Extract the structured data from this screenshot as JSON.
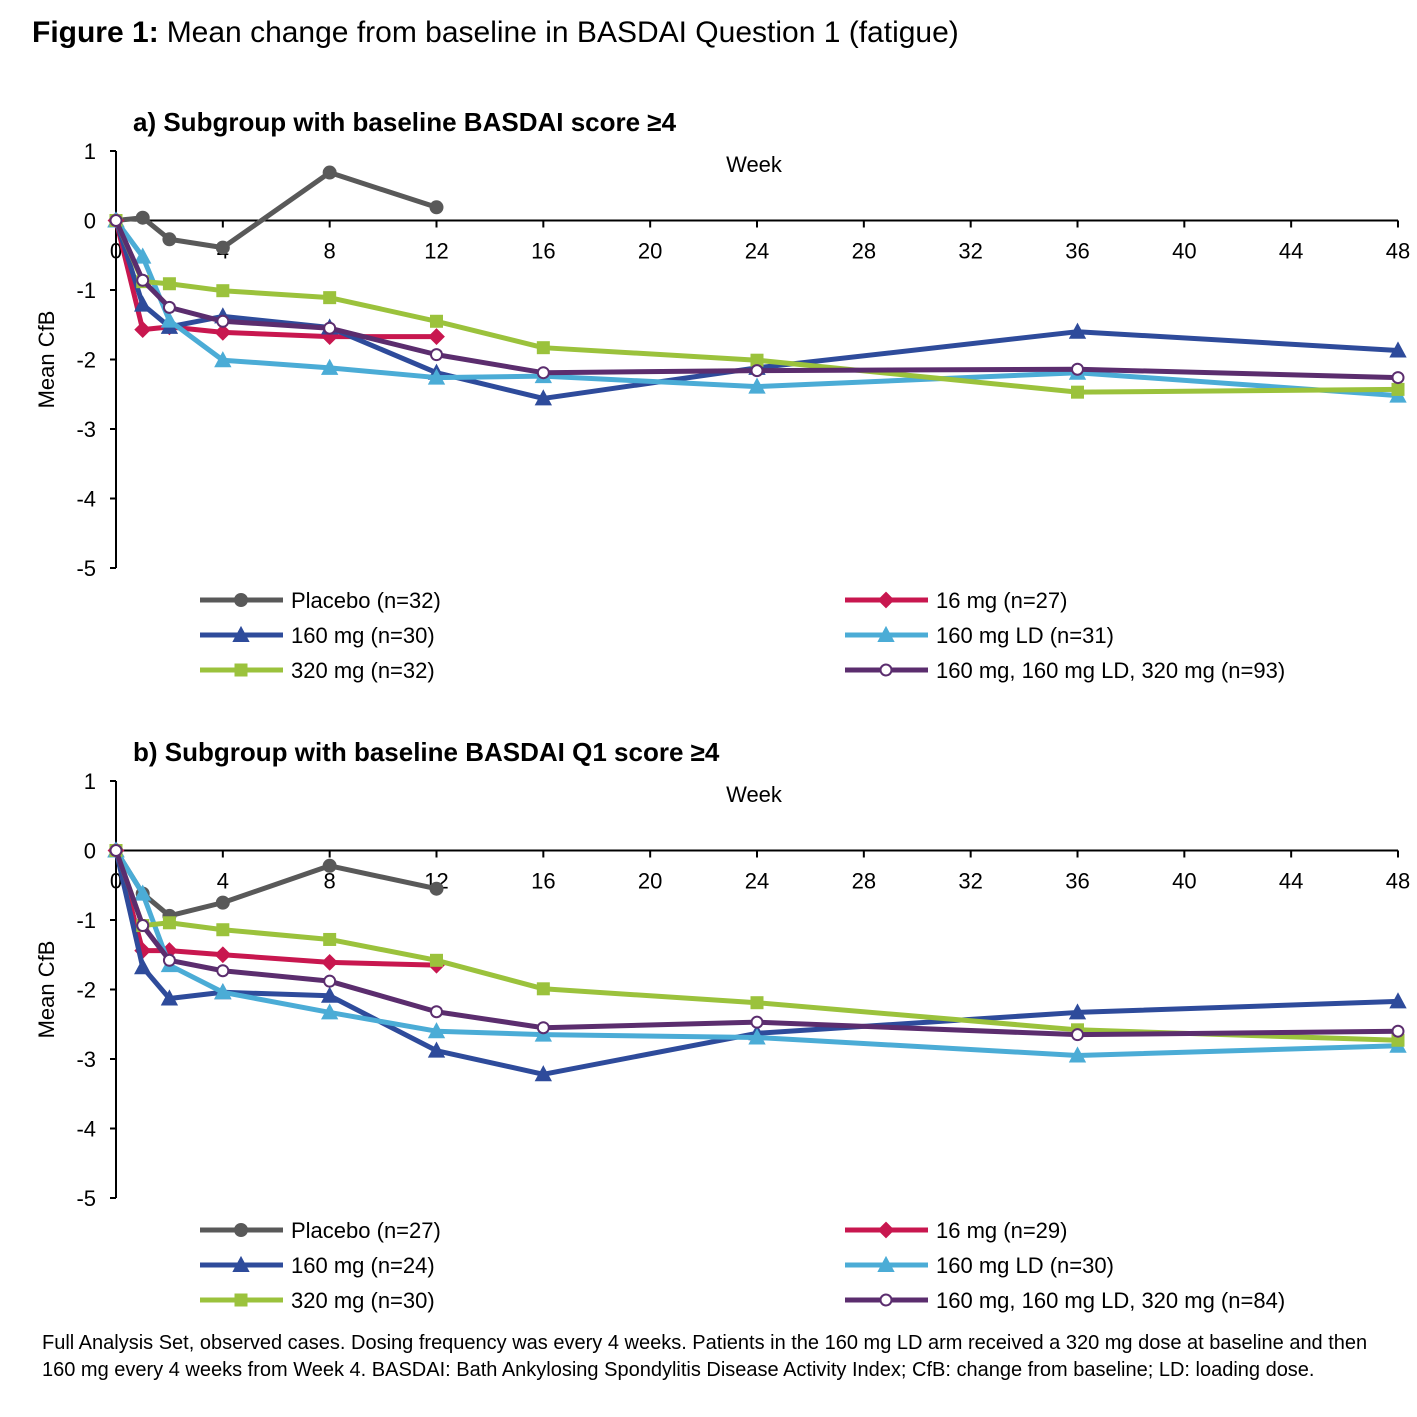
{
  "figure": {
    "label": "Figure 1:",
    "title": "Mean change from baseline in BASDAI Question 1 (fatigue)"
  },
  "footnote": "Full Analysis Set, observed cases. Dosing frequency was every 4 weeks. Patients in the 160 mg LD arm received a 320 mg dose at baseline and then 160 mg every 4 weeks from Week 4. BASDAI: Bath Ankylosing Spondylitis Disease Activity Index; CfB: change from baseline; LD: loading dose.",
  "chart_data": [
    {
      "type": "line",
      "title": "a) Subgroup with baseline BASDAI score ≥4",
      "xlabel": "Week",
      "ylabel": "Mean CfB",
      "x": [
        0,
        1,
        2,
        4,
        8,
        12,
        16,
        24,
        36,
        48
      ],
      "xlim": [
        0,
        48
      ],
      "xticks": [
        0,
        4,
        8,
        12,
        16,
        20,
        24,
        28,
        32,
        36,
        40,
        44,
        48
      ],
      "ylim": [
        -5,
        1
      ],
      "yticks": [
        -5,
        -4,
        -3,
        -2,
        -1,
        0,
        1
      ],
      "grid": false,
      "legend": "bottom",
      "series": [
        {
          "name": "Placebo (n=32)",
          "color": "#595959",
          "marker": "circle",
          "values": [
            0,
            0.04,
            -0.27,
            -0.39,
            0.69,
            0.19,
            null,
            null,
            null,
            null
          ]
        },
        {
          "name": "16 mg (n=27)",
          "color": "#c8174f",
          "marker": "diamond",
          "values": [
            0,
            -1.57,
            -1.53,
            -1.61,
            -1.67,
            -1.67,
            null,
            null,
            null,
            null
          ]
        },
        {
          "name": "160 mg (n=30)",
          "color": "#2e4b9b",
          "marker": "triangle",
          "values": [
            0,
            -1.21,
            -1.53,
            -1.38,
            -1.54,
            -2.19,
            -2.56,
            -2.12,
            -1.6,
            -1.87
          ]
        },
        {
          "name": "160 mg LD (n=31)",
          "color": "#4bacd6",
          "marker": "triangle",
          "values": [
            0,
            -0.52,
            -1.44,
            -2.01,
            -2.12,
            -2.26,
            -2.24,
            -2.39,
            -2.19,
            -2.52
          ]
        },
        {
          "name": "320 mg (n=32)",
          "color": "#9bc23c",
          "marker": "square",
          "values": [
            0,
            -0.88,
            -0.91,
            -1.01,
            -1.11,
            -1.45,
            -1.83,
            -2.01,
            -2.47,
            -2.43
          ]
        },
        {
          "name": "160 mg, 160 mg LD, 320 mg (n=93)",
          "color": "#5b2d6e",
          "marker": "open-circle",
          "values": [
            0,
            -0.86,
            -1.25,
            -1.45,
            -1.55,
            -1.93,
            -2.19,
            -2.16,
            -2.14,
            -2.26
          ]
        }
      ]
    },
    {
      "type": "line",
      "title": "b) Subgroup with baseline BASDAI Q1 score ≥4",
      "xlabel": "Week",
      "ylabel": "Mean CfB",
      "x": [
        0,
        1,
        2,
        4,
        8,
        12,
        16,
        24,
        36,
        48
      ],
      "xlim": [
        0,
        48
      ],
      "xticks": [
        0,
        4,
        8,
        12,
        16,
        20,
        24,
        28,
        32,
        36,
        40,
        44,
        48
      ],
      "ylim": [
        -5,
        1
      ],
      "yticks": [
        -5,
        -4,
        -3,
        -2,
        -1,
        0,
        1
      ],
      "grid": false,
      "legend": "bottom",
      "series": [
        {
          "name": "Placebo (n=27)",
          "color": "#595959",
          "marker": "circle",
          "values": [
            0,
            -0.62,
            -0.94,
            -0.75,
            -0.22,
            -0.55,
            null,
            null,
            null,
            null
          ]
        },
        {
          "name": "16 mg (n=29)",
          "color": "#c8174f",
          "marker": "diamond",
          "values": [
            0,
            -1.44,
            -1.44,
            -1.5,
            -1.61,
            -1.65,
            null,
            null,
            null,
            null
          ]
        },
        {
          "name": "160 mg (n=24)",
          "color": "#2e4b9b",
          "marker": "triangle",
          "values": [
            0,
            -1.68,
            -2.13,
            -2.04,
            -2.09,
            -2.88,
            -3.22,
            -2.63,
            -2.33,
            -2.17
          ]
        },
        {
          "name": "160 mg LD (n=30)",
          "color": "#4bacd6",
          "marker": "triangle",
          "values": [
            0,
            -0.62,
            -1.65,
            -2.04,
            -2.33,
            -2.6,
            -2.65,
            -2.69,
            -2.95,
            -2.81
          ]
        },
        {
          "name": "320 mg (n=30)",
          "color": "#9bc23c",
          "marker": "square",
          "values": [
            0,
            -1.08,
            -1.04,
            -1.14,
            -1.28,
            -1.58,
            -1.99,
            -2.19,
            -2.58,
            -2.73
          ]
        },
        {
          "name": "160 mg, 160 mg LD, 320 mg (n=84)",
          "color": "#5b2d6e",
          "marker": "open-circle",
          "values": [
            0,
            -1.08,
            -1.58,
            -1.73,
            -1.88,
            -2.32,
            -2.55,
            -2.47,
            -2.65,
            -2.6
          ]
        }
      ]
    }
  ]
}
